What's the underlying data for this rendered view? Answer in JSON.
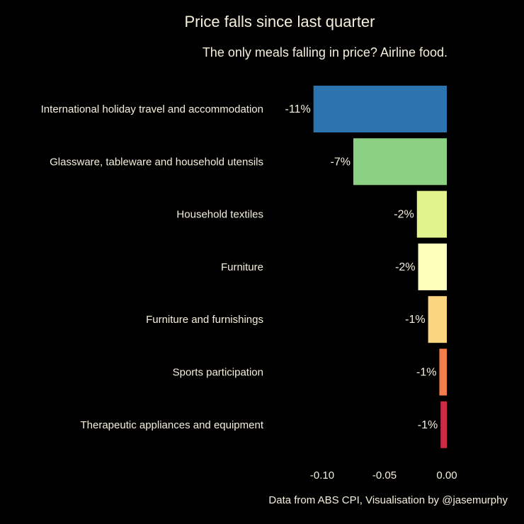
{
  "chart_data": {
    "type": "bar",
    "orientation": "horizontal",
    "title": "Price falls since last quarter",
    "subtitle": "The only meals falling in price? Airline food.",
    "caption": "Data from ABS CPI, Visualisation by @jasemurphy",
    "xlabel": "",
    "ylabel": "",
    "xlim": [
      -0.114,
      0.0
    ],
    "grid": false,
    "categories": [
      "International holiday travel and accommodation",
      "Glassware, tableware and household utensils",
      "Household textiles",
      "Furniture",
      "Furniture and furnishings",
      "Sports participation",
      "Therapeutic appliances and equipment"
    ],
    "values": [
      -0.107,
      -0.075,
      -0.024,
      -0.023,
      -0.015,
      -0.006,
      -0.005
    ],
    "data_labels": [
      "-11%",
      "-7%",
      "-2%",
      "-2%",
      "-1%",
      "-1%",
      "-1%"
    ],
    "colors": [
      "#2b74b0",
      "#8bd083",
      "#e0f38c",
      "#ffffbc",
      "#fcd67f",
      "#f47c4a",
      "#cf2a44"
    ],
    "x_ticks": [
      -0.1,
      -0.05,
      0.0
    ],
    "x_tick_labels": [
      "-0.10",
      "-0.05",
      "0.00"
    ]
  }
}
